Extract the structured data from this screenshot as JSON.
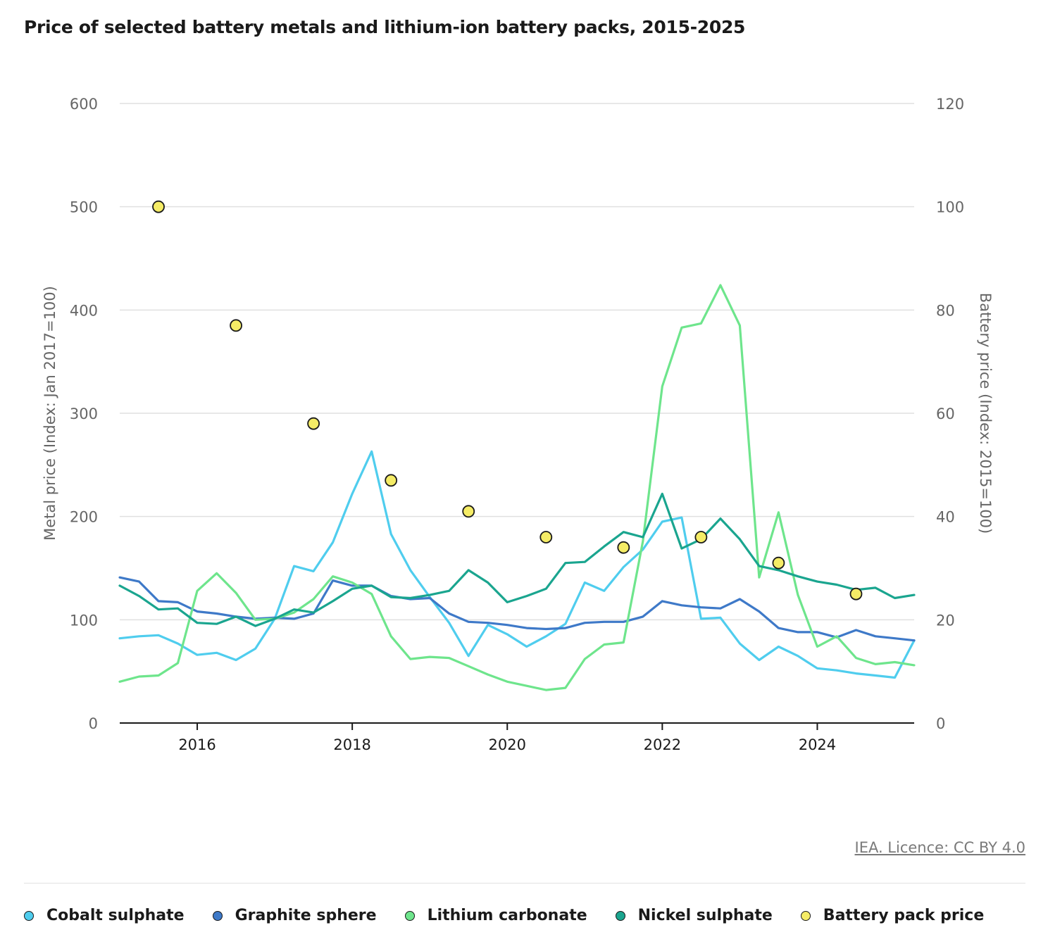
{
  "title": "Price of selected battery metals and lithium-ion battery packs, 2015-2025",
  "source": "IEA. Licence: CC BY 4.0",
  "colors": {
    "cobalt": "#4fcdee",
    "graphite": "#3e79c8",
    "lithium": "#6ee58c",
    "nickel": "#1aa58f",
    "battery": "#f5ec66",
    "grid": "#e0e0e0",
    "axis": "#1a1a1a"
  },
  "chart_data": {
    "type": "line",
    "title": "Price of selected battery metals and lithium-ion battery packs, 2015-2025",
    "ylabel": "Metal price (Index: Jan 2017=100)",
    "y2label": "Battery price (Index: 2015=100)",
    "ylim": [
      0,
      600
    ],
    "y2lim": [
      0,
      120
    ],
    "xlim": [
      2015.0,
      2025.25
    ],
    "yticks": [
      "0",
      "100",
      "200",
      "300",
      "400",
      "500",
      "600"
    ],
    "y2ticks": [
      "0",
      "20",
      "40",
      "60",
      "80",
      "100",
      "120"
    ],
    "xticks": [
      "2016",
      "2018",
      "2020",
      "2022",
      "2024"
    ],
    "grid": true,
    "legend_position": "bottom",
    "x": [
      2015.0,
      2015.25,
      2015.5,
      2015.75,
      2016.0,
      2016.25,
      2016.5,
      2016.75,
      2017.0,
      2017.25,
      2017.5,
      2017.75,
      2018.0,
      2018.25,
      2018.5,
      2018.75,
      2019.0,
      2019.25,
      2019.5,
      2019.75,
      2020.0,
      2020.25,
      2020.5,
      2020.75,
      2021.0,
      2021.25,
      2021.5,
      2021.75,
      2022.0,
      2022.25,
      2022.5,
      2022.75,
      2023.0,
      2023.25,
      2023.5,
      2023.75,
      2024.0,
      2024.25,
      2024.5,
      2024.75,
      2025.0,
      2025.25
    ],
    "series": [
      {
        "name": "Cobalt sulphate",
        "color_key": "cobalt",
        "axis": "left",
        "values": [
          82,
          84,
          85,
          77,
          66,
          68,
          61,
          72,
          101,
          152,
          147,
          175,
          222,
          263,
          183,
          148,
          122,
          97,
          65,
          95,
          86,
          74,
          84,
          96,
          136,
          128,
          151,
          168,
          195,
          199,
          101,
          102,
          77,
          61,
          74,
          65,
          53,
          51,
          48,
          46,
          44,
          80
        ]
      },
      {
        "name": "Graphite sphere",
        "color_key": "graphite",
        "axis": "left",
        "values": [
          141,
          137,
          118,
          117,
          108,
          106,
          103,
          101,
          102,
          101,
          106,
          138,
          133,
          133,
          123,
          120,
          121,
          106,
          98,
          97,
          95,
          92,
          91,
          92,
          97,
          98,
          98,
          103,
          118,
          114,
          112,
          111,
          120,
          108,
          92,
          88,
          88,
          83,
          90,
          84,
          82,
          80
        ]
      },
      {
        "name": "Lithium carbonate",
        "color_key": "lithium",
        "axis": "left",
        "values": [
          40,
          45,
          46,
          58,
          128,
          145,
          126,
          100,
          101,
          107,
          120,
          142,
          136,
          125,
          84,
          62,
          64,
          63,
          55,
          47,
          40,
          36,
          32,
          34,
          62,
          76,
          78,
          176,
          326,
          383,
          387,
          424,
          385,
          141,
          204,
          124,
          74,
          84,
          63,
          57,
          59,
          56
        ]
      },
      {
        "name": "Nickel sulphate",
        "color_key": "nickel",
        "axis": "left",
        "values": [
          133,
          123,
          110,
          111,
          97,
          96,
          103,
          94,
          101,
          110,
          107,
          118,
          130,
          133,
          122,
          121,
          124,
          128,
          148,
          136,
          117,
          123,
          130,
          155,
          156,
          171,
          185,
          180,
          222,
          169,
          178,
          198,
          178,
          152,
          148,
          142,
          137,
          134,
          129,
          131,
          121,
          124
        ]
      }
    ],
    "battery_pack_price": {
      "name": "Battery pack price",
      "color_key": "battery",
      "axis": "right",
      "x": [
        2015.5,
        2016.5,
        2017.5,
        2018.5,
        2019.5,
        2020.5,
        2021.5,
        2022.5,
        2023.5,
        2024.5
      ],
      "values": [
        100,
        77,
        58,
        47,
        41,
        36,
        34,
        36,
        31,
        25
      ]
    }
  },
  "legend": [
    {
      "label": "Cobalt sulphate",
      "color_key": "cobalt"
    },
    {
      "label": "Graphite sphere",
      "color_key": "graphite"
    },
    {
      "label": "Lithium carbonate",
      "color_key": "lithium"
    },
    {
      "label": "Nickel sulphate",
      "color_key": "nickel"
    },
    {
      "label": "Battery pack price",
      "color_key": "battery"
    }
  ]
}
